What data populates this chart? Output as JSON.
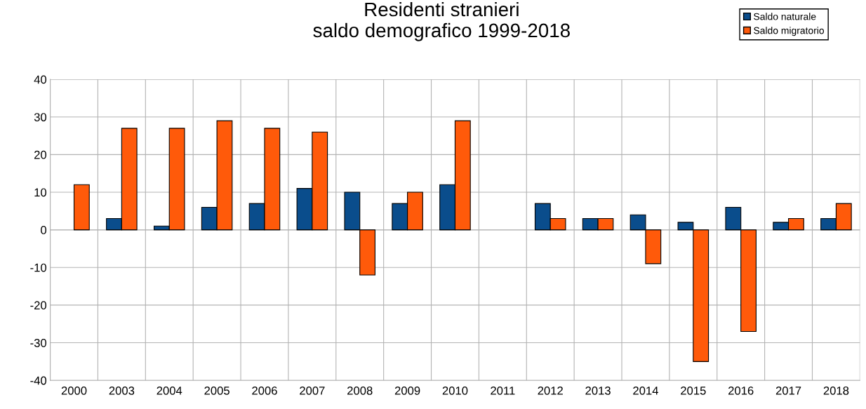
{
  "chart_data": {
    "type": "bar",
    "title": "Residenti stranieri\nsaldo demografico 1999-2018",
    "categories": [
      "2000",
      "2003",
      "2004",
      "2005",
      "2006",
      "2007",
      "2008",
      "2009",
      "2010",
      "2011",
      "2012",
      "2013",
      "2014",
      "2015",
      "2016",
      "2017",
      "2018"
    ],
    "series": [
      {
        "name": "Saldo naturale",
        "color": "#0a4d8c",
        "values": [
          null,
          3,
          1,
          6,
          7,
          11,
          10,
          7,
          12,
          null,
          7,
          3,
          4,
          2,
          6,
          2,
          3
        ]
      },
      {
        "name": "Saldo migratorio",
        "color": "#ff5a0a",
        "values": [
          12,
          27,
          27,
          29,
          27,
          26,
          -12,
          10,
          29,
          null,
          3,
          3,
          -9,
          -35,
          -27,
          3,
          7
        ]
      }
    ],
    "ylim": [
      -40,
      40
    ],
    "yticks": [
      -40,
      -30,
      -20,
      -10,
      0,
      10,
      20,
      30,
      40
    ],
    "grid": true,
    "legend": "top right"
  }
}
